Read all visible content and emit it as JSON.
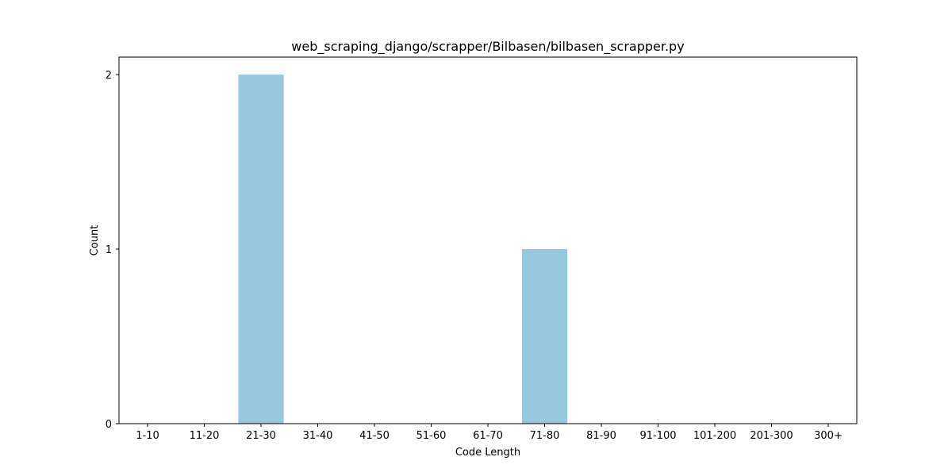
{
  "chart_data": {
    "type": "bar",
    "title": "web_scraping_django/scrapper/Bilbasen/bilbasen_scrapper.py",
    "xlabel": "Code Length",
    "ylabel": "Count",
    "categories": [
      "1-10",
      "11-20",
      "21-30",
      "31-40",
      "41-50",
      "51-60",
      "61-70",
      "71-80",
      "81-90",
      "91-100",
      "101-200",
      "201-300",
      "300+"
    ],
    "values": [
      0,
      0,
      2,
      0,
      0,
      0,
      0,
      1,
      0,
      0,
      0,
      0,
      0
    ],
    "yticks": [
      "0",
      "1",
      "2"
    ],
    "ylim": [
      0,
      2.1
    ],
    "grid": false,
    "bar_color": "#96c9dd"
  }
}
